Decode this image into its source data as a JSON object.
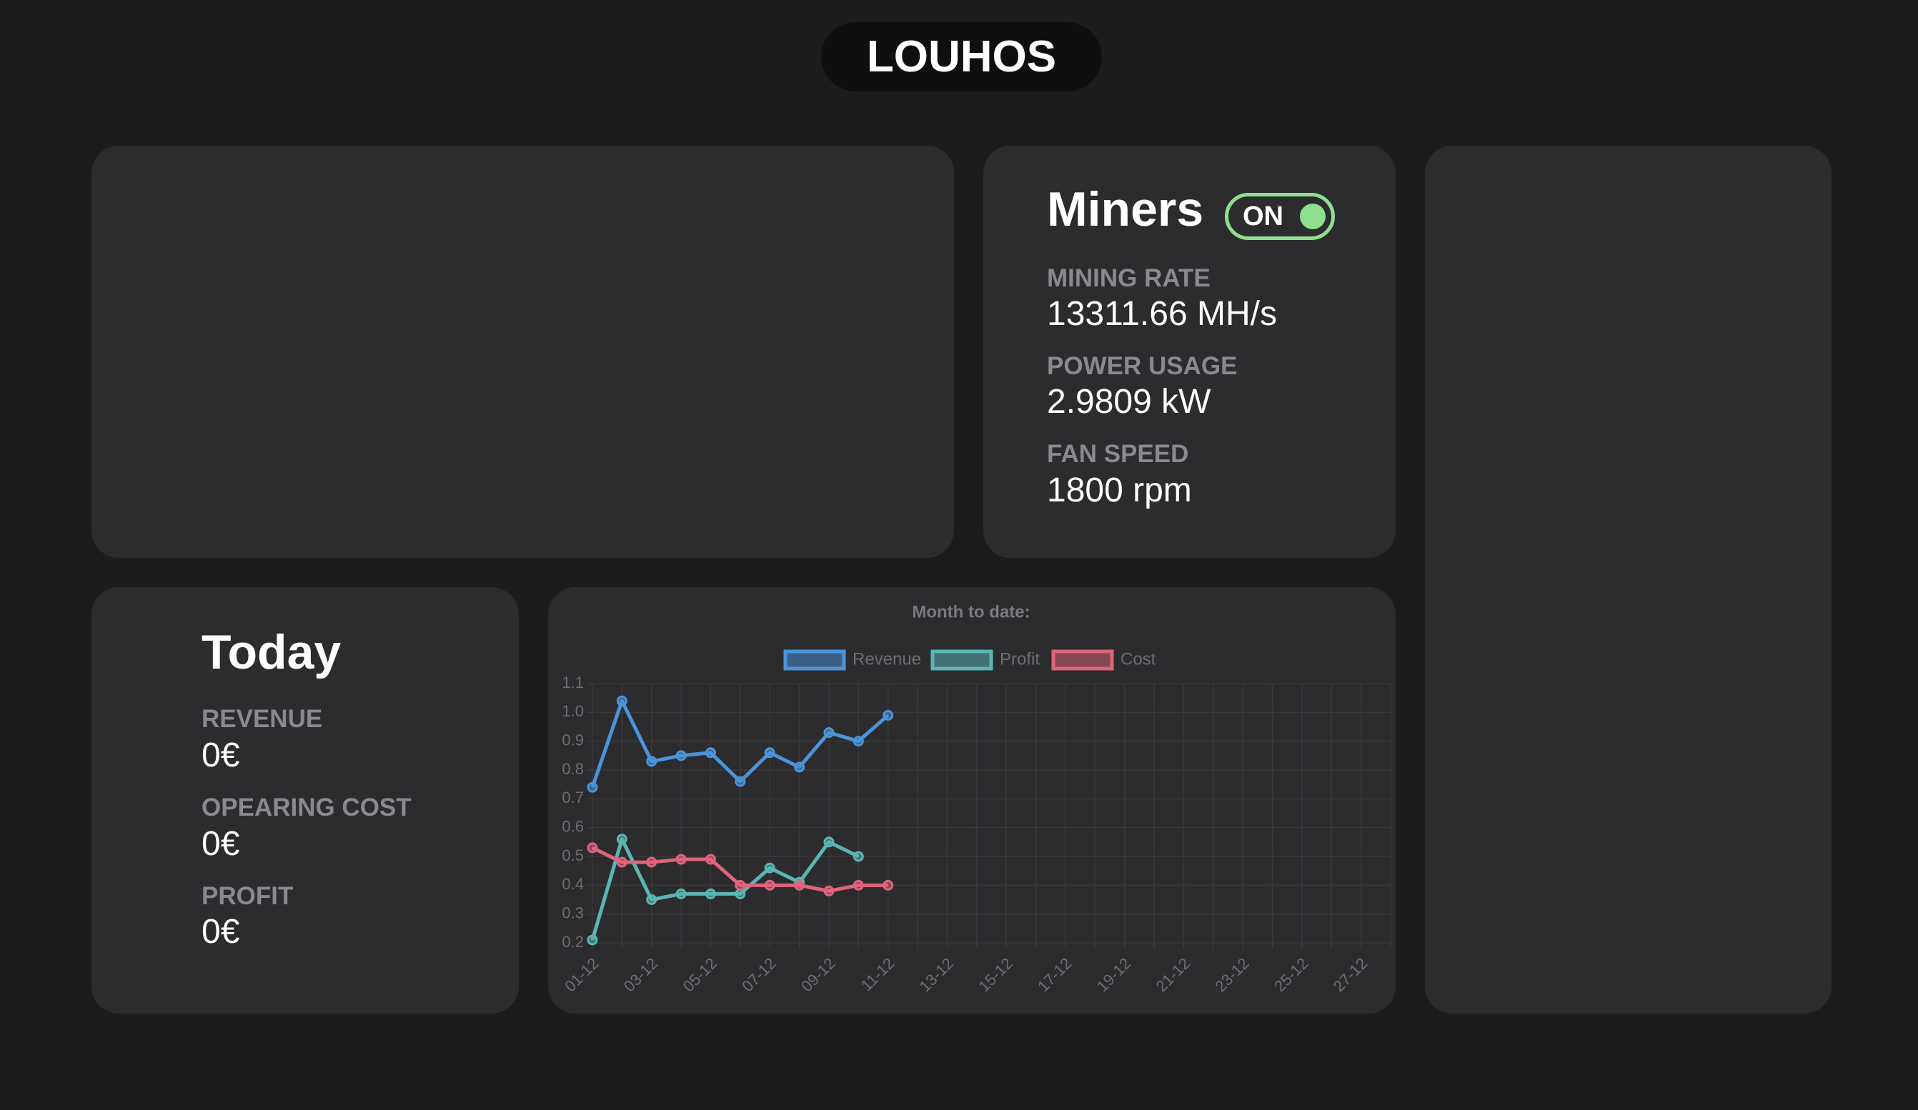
{
  "header": {
    "title": "LOUHOS"
  },
  "miners": {
    "title": "Miners",
    "status": "ON",
    "stats": [
      {
        "label": "MINING RATE",
        "value": "13311.66 MH/s"
      },
      {
        "label": "POWER USAGE",
        "value": "2.9809 kW"
      },
      {
        "label": "FAN SPEED",
        "value": "1800 rpm"
      }
    ]
  },
  "today": {
    "title": "Today",
    "stats": [
      {
        "label": "REVENUE",
        "value": "0€"
      },
      {
        "label": "OPEARING COST",
        "value": "0€"
      },
      {
        "label": "PROFIT",
        "value": "0€"
      }
    ]
  },
  "chart_data": {
    "type": "line",
    "title": "Month to date:",
    "categories": [
      "01-12",
      null,
      "03-12",
      null,
      "05-12",
      null,
      "07-12",
      null,
      "09-12",
      null,
      "11-12",
      null,
      "13-12",
      null,
      "15-12",
      null,
      "17-12",
      null,
      "19-12",
      null,
      "21-12",
      null,
      "23-12",
      null,
      "25-12",
      null,
      "27-12",
      null
    ],
    "series": [
      {
        "name": "Revenue",
        "color": "#4b94dc",
        "values": [
          0.74,
          1.04,
          0.83,
          0.85,
          0.86,
          0.76,
          0.86,
          0.81,
          0.93,
          0.9,
          0.99,
          null,
          null,
          null,
          null,
          null,
          null,
          null,
          null,
          null,
          null,
          null,
          null,
          null,
          null,
          null,
          null,
          null
        ]
      },
      {
        "name": "Profit",
        "color": "#5ab5b3",
        "values": [
          0.21,
          0.56,
          0.35,
          0.37,
          0.37,
          0.37,
          0.46,
          0.41,
          0.55,
          0.5,
          null,
          null,
          null,
          null,
          null,
          null,
          null,
          null,
          null,
          null,
          null,
          null,
          null,
          null,
          null,
          null,
          null,
          null
        ]
      },
      {
        "name": "Cost",
        "color": "#e0647c",
        "values": [
          0.53,
          0.48,
          0.48,
          0.49,
          0.49,
          0.4,
          0.4,
          0.4,
          0.38,
          0.4,
          0.4,
          null,
          null,
          null,
          null,
          null,
          null,
          null,
          null,
          null,
          null,
          null,
          null,
          null,
          null,
          null,
          null,
          null
        ]
      }
    ],
    "ylim": [
      0.2,
      1.1
    ],
    "yticks": [
      0.2,
      0.3,
      0.4,
      0.5,
      0.6,
      0.7,
      0.8,
      0.9,
      {
        "value": 1,
        "label": "1.0"
      },
      1.1
    ],
    "grid": true
  }
}
